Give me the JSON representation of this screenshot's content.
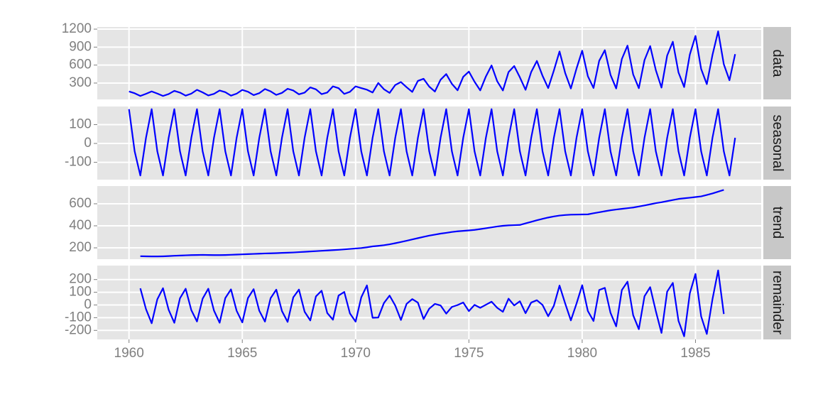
{
  "chart_data": {
    "type": "line",
    "color": "#0000ff",
    "grid": true,
    "x": [
      1960,
      1960.25,
      1960.5,
      1960.75,
      1961,
      1961.25,
      1961.5,
      1961.75,
      1962,
      1962.25,
      1962.5,
      1962.75,
      1963,
      1963.25,
      1963.5,
      1963.75,
      1964,
      1964.25,
      1964.5,
      1964.75,
      1965,
      1965.25,
      1965.5,
      1965.75,
      1966,
      1966.25,
      1966.5,
      1966.75,
      1967,
      1967.25,
      1967.5,
      1967.75,
      1968,
      1968.25,
      1968.5,
      1968.75,
      1969,
      1969.25,
      1969.5,
      1969.75,
      1970,
      1970.25,
      1970.5,
      1970.75,
      1971,
      1971.25,
      1971.5,
      1971.75,
      1972,
      1972.25,
      1972.5,
      1972.75,
      1973,
      1973.25,
      1973.5,
      1973.75,
      1974,
      1974.25,
      1974.5,
      1974.75,
      1975,
      1975.25,
      1975.5,
      1975.75,
      1976,
      1976.25,
      1976.5,
      1976.75,
      1977,
      1977.25,
      1977.5,
      1977.75,
      1978,
      1978.25,
      1978.5,
      1978.75,
      1979,
      1979.25,
      1979.5,
      1979.75,
      1980,
      1980.25,
      1980.5,
      1980.75,
      1981,
      1981.25,
      1981.5,
      1981.75,
      1982,
      1982.25,
      1982.5,
      1982.75,
      1983,
      1983.25,
      1983.5,
      1983.75,
      1984,
      1984.25,
      1984.5,
      1984.75,
      1985,
      1985.25,
      1985.5,
      1985.75,
      1986,
      1986.25,
      1986.5,
      1986.75
    ],
    "xlim": [
      1958.6,
      1987.9
    ],
    "xticks": [
      1960,
      1965,
      1970,
      1975,
      1980,
      1985
    ],
    "series": [
      {
        "name": "data",
        "ylim": [
          27,
          1236
        ],
        "yticks": [
          300,
          600,
          900,
          1200
        ],
        "values": [
          160.1,
          129.7,
          84.8,
          120.1,
          160.1,
          124.9,
          84.8,
          116.9,
          169.7,
          140.9,
          89.7,
          123.3,
          187.3,
          144.1,
          92.9,
          120.1,
          176.1,
          147.3,
          89.7,
          123.3,
          185.7,
          155.3,
          99.3,
          131.3,
          200.1,
          161.7,
          102.5,
          136.1,
          204.9,
          176.1,
          112.1,
          140.9,
          227.3,
          195.3,
          115.3,
          142.5,
          244.9,
          214.5,
          118.5,
          153.7,
          244.9,
          216.1,
          188.9,
          142.5,
          301.0,
          196.9,
          136.1,
          267.3,
          317.0,
          230.5,
          152.1,
          336.2,
          371.4,
          240.1,
          158.5,
          355.4,
          449.9,
          286.6,
          179.3,
          403.4,
          491.5,
          321.8,
          177.7,
          409.8,
          593.9,
          329.8,
          176.1,
          483.5,
          584.3,
          395.4,
          187.3,
          485.1,
          669.2,
          421.0,
          216.1,
          509.1,
          827.7,
          467.5,
          209.7,
          542.7,
          840.5,
          414.6,
          217.7,
          670.8,
          848.5,
          437.0,
          209.7,
          701.2,
          925.3,
          443.4,
          214.5,
          683.6,
          917.3,
          515.5,
          224.1,
          758.9,
          989.4,
          477.1,
          233.7,
          776.5,
          1087.0,
          534.7,
          281.8,
          769.3,
          1163.9,
          613.1,
          347.4,
          782.1
        ]
      },
      {
        "name": "seasonal",
        "ylim": [
          -192,
          196
        ],
        "yticks": [
          -100,
          0,
          100
        ],
        "values": [
          182,
          -42,
          -170,
          30,
          182,
          -42,
          -170,
          30,
          182,
          -42,
          -170,
          30,
          182,
          -42,
          -170,
          30,
          182,
          -42,
          -170,
          30,
          182,
          -42,
          -170,
          30,
          182,
          -42,
          -170,
          30,
          182,
          -42,
          -170,
          30,
          182,
          -42,
          -170,
          30,
          182,
          -42,
          -170,
          30,
          182,
          -42,
          -170,
          30,
          182,
          -42,
          -170,
          30,
          182,
          -42,
          -170,
          30,
          182,
          -42,
          -170,
          30,
          182,
          -42,
          -170,
          30,
          182,
          -42,
          -170,
          30,
          182,
          -42,
          -170,
          30,
          182,
          -42,
          -170,
          30,
          182,
          -42,
          -170,
          30,
          182,
          -42,
          -170,
          30,
          182,
          -42,
          -170,
          30,
          182,
          -42,
          -170,
          30,
          182,
          -42,
          -170,
          30,
          182,
          -42,
          -170,
          30,
          182,
          -42,
          -170,
          30,
          182,
          -42,
          -170,
          30,
          182,
          -42,
          -170,
          30
        ]
      },
      {
        "name": "trend",
        "ylim": [
          97,
          761
        ],
        "yticks": [
          200,
          400,
          600
        ],
        "values": [
          null,
          null,
          124,
          123,
          122,
          122,
          123,
          125,
          128,
          130,
          132,
          134,
          135,
          136,
          135,
          134,
          134,
          135,
          137,
          139,
          141,
          143,
          145,
          147,
          149,
          150,
          152,
          154,
          156,
          158,
          161,
          164,
          167,
          170,
          173,
          176,
          179,
          182,
          186,
          190,
          194,
          198,
          205,
          213,
          218,
          224,
          232,
          242,
          253,
          264,
          276,
          288,
          300,
          311,
          320,
          329,
          336,
          344,
          350,
          354,
          358,
          363,
          370,
          378,
          386,
          394,
          400,
          404,
          406,
          408,
          422,
          436,
          450,
          463,
          475,
          485,
          493,
          498,
          501,
          502,
          503,
          504,
          514,
          523,
          532,
          541,
          548,
          554,
          560,
          566,
          575,
          585,
          595,
          606,
          614,
          624,
          634,
          644,
          650,
          655,
          661,
          667,
          680,
          694,
          710,
          726,
          null,
          null
        ]
      },
      {
        "name": "remainder",
        "ylim": [
          -271,
          310
        ],
        "yticks": [
          -200,
          -100,
          0,
          100,
          200
        ],
        "values": [
          null,
          null,
          130.8,
          -32.9,
          -143.9,
          44.9,
          131.8,
          -38.1,
          -140.3,
          52.9,
          127.7,
          -40.7,
          -129.7,
          50.1,
          127.9,
          -43.9,
          -139.9,
          54.3,
          122.7,
          -45.7,
          -137.3,
          54.3,
          124.3,
          -45.7,
          -130.9,
          53.7,
          120.5,
          -47.9,
          -133.1,
          60.1,
          121.1,
          -53.1,
          -121.7,
          67.3,
          112.3,
          -63.5,
          -116.1,
          74.5,
          102.5,
          -66.3,
          -131.1,
          60.1,
          153.9,
          -100.5,
          -99,
          14.9,
          74.1,
          -4.7,
          -118,
          8.5,
          46.1,
          18.2,
          -110.6,
          -28.9,
          8.5,
          -3.6,
          -68.1,
          -15.4,
          -0.7,
          19.4,
          -48.5,
          0.8,
          -22.3,
          1.8,
          25.9,
          -22.2,
          -53.9,
          49.5,
          -3.7,
          29.4,
          -64.7,
          19.1,
          37.2,
          0,
          -88.9,
          -5.9,
          152.7,
          11.5,
          -121.3,
          10.7,
          155.5,
          -47.4,
          -126.3,
          117.8,
          134.5,
          -62,
          -168.3,
          117.2,
          183.3,
          -80.6,
          -190.5,
          68.6,
          140.3,
          -48.5,
          -219.9,
          104.9,
          173.4,
          -124.9,
          -246.3,
          91.5,
          244,
          -90.3,
          -228.2,
          45.3,
          271.9,
          -70.9,
          null,
          null
        ]
      }
    ]
  }
}
